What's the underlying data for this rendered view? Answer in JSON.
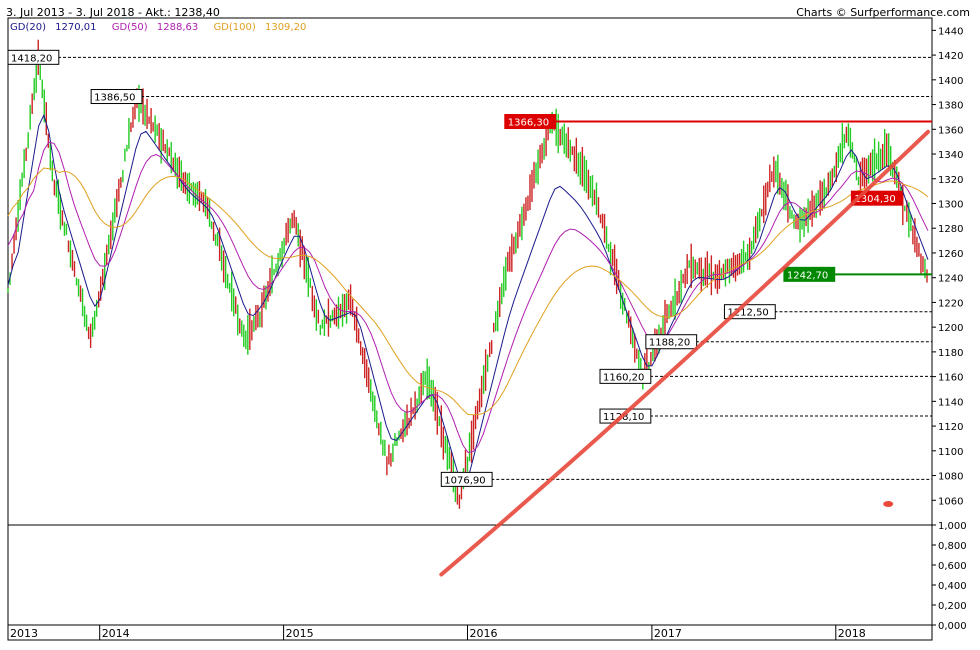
{
  "header": {
    "period": "3. Jul 2013 - 3. Jul 2018 - Akt.: 1238,40",
    "credit": "Charts © Surfperformance.com"
  },
  "legend": [
    {
      "label": "GD(20)",
      "value": "1270,01",
      "color": "#1a1a8c"
    },
    {
      "label": "GD(50)",
      "value": "1288,63",
      "color": "#b020b0"
    },
    {
      "label": "GD(100)",
      "value": "1309,20",
      "color": "#e0a020"
    }
  ],
  "colors": {
    "up": "#22cc22",
    "down": "#cc2222",
    "trendline": "#e8473a",
    "resistance": "#dd0000",
    "support": "#008800",
    "grid": "#555555"
  },
  "chart_data": {
    "type": "line",
    "title": "3. Jul 2013 - 3. Jul 2018",
    "x_ticks": [
      "2013",
      "2014",
      "2015",
      "2016",
      "2017",
      "2018"
    ],
    "x_tick_dates": [
      "2013-07-03",
      "2014-01-01",
      "2015-01-01",
      "2016-01-01",
      "2017-01-01",
      "2018-01-01"
    ],
    "ylim": [
      1040,
      1450
    ],
    "y_ticks": [
      "1440",
      "1420",
      "1400",
      "1380",
      "1360",
      "1340",
      "1320",
      "1300",
      "1280",
      "1260",
      "1240",
      "1220",
      "1200",
      "1180",
      "1160",
      "1140",
      "1120",
      "1100",
      "1080",
      "1060"
    ],
    "lower_panel_ticks": [
      "1,000",
      "0,800",
      "0,600",
      "0,400",
      "0,200",
      "0,000"
    ],
    "series": [
      {
        "name": "Price",
        "x": [
          "2013-07-03",
          "2013-09-01",
          "2013-10-01",
          "2013-12-15",
          "2014-03-15",
          "2014-06-15",
          "2014-08-01",
          "2014-10-15",
          "2014-11-15",
          "2015-01-20",
          "2015-03-15",
          "2015-05-15",
          "2015-07-25",
          "2015-10-15",
          "2015-12-15",
          "2016-03-15",
          "2016-06-15",
          "2016-08-01",
          "2016-09-15",
          "2016-12-15",
          "2017-03-15",
          "2017-05-15",
          "2017-07-15",
          "2017-09-01",
          "2017-10-15",
          "2017-12-15",
          "2018-01-25",
          "2018-02-15",
          "2018-04-15",
          "2018-05-15",
          "2018-07-03"
        ],
        "values": [
          1230,
          1418,
          1320,
          1190,
          1386,
          1320,
          1300,
          1190,
          1210,
          1290,
          1200,
          1220,
          1090,
          1160,
          1060,
          1240,
          1366,
          1340,
          1300,
          1160,
          1250,
          1240,
          1260,
          1330,
          1280,
          1310,
          1360,
          1320,
          1345,
          1300,
          1238
        ]
      },
      {
        "name": "GD(20)",
        "x": [
          "2013-07-03",
          "2014-01-01",
          "2015-01-01",
          "2016-01-01",
          "2017-01-01",
          "2018-01-01",
          "2018-07-03"
        ],
        "values": [
          1250,
          1280,
          1260,
          1080,
          1170,
          1320,
          1270.01
        ]
      },
      {
        "name": "GD(50)",
        "x": [
          "2013-07-03",
          "2014-01-01",
          "2015-01-01",
          "2016-01-01",
          "2017-01-01",
          "2018-01-01",
          "2018-07-03"
        ],
        "values": [
          1320,
          1300,
          1270,
          1120,
          1200,
          1310,
          1288.63
        ]
      },
      {
        "name": "GD(100)",
        "x": [
          "2013-07-03",
          "2014-01-01",
          "2015-01-01",
          "2016-01-01",
          "2017-01-01",
          "2018-01-01",
          "2018-07-03"
        ],
        "values": [
          1330,
          1310,
          1280,
          1140,
          1210,
          1300,
          1309.2
        ]
      }
    ],
    "levels": [
      {
        "label": "1418,20",
        "value": 1418.2,
        "from": "2013-07-03",
        "style": "dashed",
        "color": "#000000"
      },
      {
        "label": "1386,50",
        "value": 1386.5,
        "from": "2013-12-15",
        "style": "dashed",
        "color": "#000000"
      },
      {
        "label": "1366,30",
        "value": 1366.3,
        "from": "2016-03-15",
        "style": "solid",
        "color": "#dd0000",
        "highlight": true
      },
      {
        "label": "1304,30",
        "value": 1304.3,
        "from": "2018-02-01",
        "style": "none",
        "color": "#dd0000",
        "highlight": true
      },
      {
        "label": "1242,70",
        "value": 1242.7,
        "from": "2017-09-20",
        "style": "solid",
        "color": "#008800",
        "highlight": true
      },
      {
        "label": "1212,50",
        "value": 1212.5,
        "from": "2017-05-25",
        "style": "dashed",
        "color": "#000000"
      },
      {
        "label": "1188,20",
        "value": 1188.2,
        "from": "2016-12-20",
        "style": "dashed",
        "color": "#000000"
      },
      {
        "label": "1160,20",
        "value": 1160.2,
        "from": "2016-09-20",
        "style": "dashed",
        "color": "#000000"
      },
      {
        "label": "1128,10",
        "value": 1128.1,
        "from": "2016-09-20",
        "style": "dashed",
        "color": "#000000"
      },
      {
        "label": "1076,90",
        "value": 1076.9,
        "from": "2015-11-10",
        "style": "dashed",
        "color": "#000000"
      }
    ],
    "annotation_trendline": {
      "from": [
        "2015-11-10",
        1000
      ],
      "to": [
        "2018-07-03",
        1358
      ]
    },
    "grid": false,
    "legend_position": "top-left"
  }
}
